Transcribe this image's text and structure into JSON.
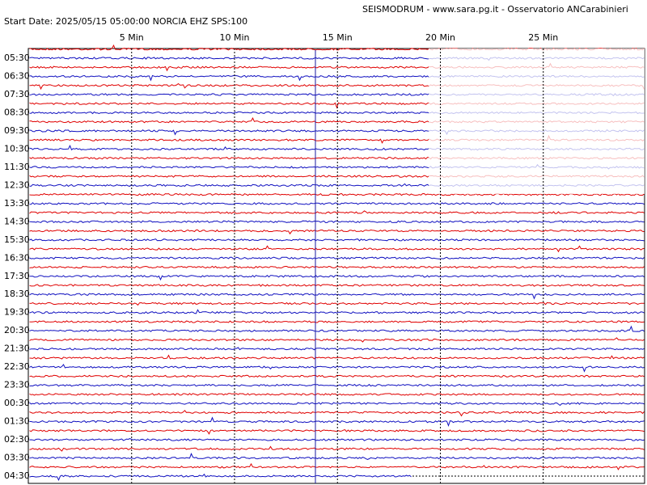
{
  "header": {
    "title": "SEISMODRUM - www.sara.pg.it - Osservatorio ANCarabinieri",
    "start_info": "Start Date: 2025/05/15 05:00:00 NORCIA  EHZ  SPS:100"
  },
  "x_axis": {
    "ticks": [
      "5 Min",
      "10 Min",
      "15 Min",
      "20 Min",
      "25 Min"
    ]
  },
  "rows": {
    "labels": [
      "05:30",
      "06:30",
      "07:30",
      "08:30",
      "09:30",
      "10:30",
      "11:30",
      "12:30",
      "13:30",
      "14:30",
      "15:30",
      "16:30",
      "17:30",
      "18:30",
      "19:30",
      "20:30",
      "21:30",
      "22:30",
      "23:30",
      "00:30",
      "01:30",
      "02:30",
      "03:30",
      "04:30"
    ]
  }
}
